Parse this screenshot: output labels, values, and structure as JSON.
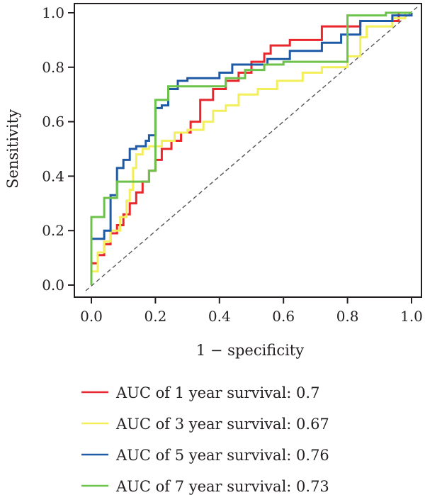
{
  "chart_data": {
    "type": "line",
    "title": "",
    "xlabel": "1 − specificity",
    "ylabel": "Sensitivity",
    "xlim": [
      0,
      1
    ],
    "ylim": [
      0,
      1
    ],
    "xticks": [
      "0.0",
      "0.2",
      "0.4",
      "0.6",
      "0.8",
      "1.0"
    ],
    "yticks": [
      "0.0",
      "0.2",
      "0.4",
      "0.6",
      "0.8",
      "1.0"
    ],
    "grid": false,
    "legend_position": "bottom",
    "reference_line": {
      "style": "dashed",
      "color": "#555555",
      "from": [
        0,
        0
      ],
      "to": [
        1,
        1
      ]
    },
    "series": [
      {
        "name": "AUC of 1 year survival: 0.7",
        "color": "#e8262b",
        "points": [
          [
            0,
            0
          ],
          [
            0,
            0.08
          ],
          [
            0.02,
            0.08
          ],
          [
            0.02,
            0.11
          ],
          [
            0.04,
            0.11
          ],
          [
            0.04,
            0.15
          ],
          [
            0.06,
            0.15
          ],
          [
            0.06,
            0.19
          ],
          [
            0.08,
            0.19
          ],
          [
            0.08,
            0.22
          ],
          [
            0.1,
            0.22
          ],
          [
            0.1,
            0.26
          ],
          [
            0.12,
            0.26
          ],
          [
            0.12,
            0.3
          ],
          [
            0.14,
            0.3
          ],
          [
            0.14,
            0.34
          ],
          [
            0.16,
            0.34
          ],
          [
            0.16,
            0.38
          ],
          [
            0.18,
            0.38
          ],
          [
            0.18,
            0.42
          ],
          [
            0.2,
            0.42
          ],
          [
            0.2,
            0.46
          ],
          [
            0.22,
            0.46
          ],
          [
            0.22,
            0.5
          ],
          [
            0.25,
            0.5
          ],
          [
            0.25,
            0.53
          ],
          [
            0.28,
            0.53
          ],
          [
            0.28,
            0.56
          ],
          [
            0.31,
            0.56
          ],
          [
            0.31,
            0.6
          ],
          [
            0.34,
            0.6
          ],
          [
            0.34,
            0.68
          ],
          [
            0.38,
            0.68
          ],
          [
            0.38,
            0.72
          ],
          [
            0.42,
            0.72
          ],
          [
            0.42,
            0.75
          ],
          [
            0.46,
            0.75
          ],
          [
            0.46,
            0.78
          ],
          [
            0.5,
            0.78
          ],
          [
            0.5,
            0.82
          ],
          [
            0.54,
            0.82
          ],
          [
            0.54,
            0.85
          ],
          [
            0.56,
            0.85
          ],
          [
            0.56,
            0.88
          ],
          [
            0.62,
            0.88
          ],
          [
            0.62,
            0.9
          ],
          [
            0.72,
            0.9
          ],
          [
            0.72,
            0.95
          ],
          [
            0.84,
            0.95
          ],
          [
            0.84,
            0.97
          ],
          [
            0.96,
            0.97
          ],
          [
            0.96,
            1.0
          ],
          [
            1.0,
            1.0
          ]
        ]
      },
      {
        "name": "AUC of 3 year survival: 0.67",
        "color": "#f2ef5a",
        "points": [
          [
            0,
            0
          ],
          [
            0,
            0.05
          ],
          [
            0.02,
            0.05
          ],
          [
            0.02,
            0.12
          ],
          [
            0.04,
            0.12
          ],
          [
            0.04,
            0.16
          ],
          [
            0.06,
            0.16
          ],
          [
            0.06,
            0.2
          ],
          [
            0.09,
            0.2
          ],
          [
            0.09,
            0.25
          ],
          [
            0.11,
            0.25
          ],
          [
            0.11,
            0.31
          ],
          [
            0.12,
            0.31
          ],
          [
            0.12,
            0.35
          ],
          [
            0.13,
            0.35
          ],
          [
            0.13,
            0.43
          ],
          [
            0.14,
            0.43
          ],
          [
            0.14,
            0.48
          ],
          [
            0.16,
            0.48
          ],
          [
            0.16,
            0.5
          ],
          [
            0.18,
            0.5
          ],
          [
            0.18,
            0.51
          ],
          [
            0.22,
            0.51
          ],
          [
            0.22,
            0.53
          ],
          [
            0.26,
            0.53
          ],
          [
            0.26,
            0.56
          ],
          [
            0.3,
            0.56
          ],
          [
            0.3,
            0.57
          ],
          [
            0.35,
            0.57
          ],
          [
            0.35,
            0.6
          ],
          [
            0.38,
            0.6
          ],
          [
            0.38,
            0.64
          ],
          [
            0.42,
            0.64
          ],
          [
            0.42,
            0.66
          ],
          [
            0.46,
            0.66
          ],
          [
            0.46,
            0.7
          ],
          [
            0.52,
            0.7
          ],
          [
            0.52,
            0.72
          ],
          [
            0.58,
            0.72
          ],
          [
            0.58,
            0.75
          ],
          [
            0.66,
            0.75
          ],
          [
            0.66,
            0.78
          ],
          [
            0.72,
            0.78
          ],
          [
            0.72,
            0.8
          ],
          [
            0.8,
            0.8
          ],
          [
            0.8,
            0.84
          ],
          [
            0.84,
            0.84
          ],
          [
            0.84,
            0.91
          ],
          [
            0.86,
            0.91
          ],
          [
            0.86,
            0.95
          ],
          [
            0.94,
            0.95
          ],
          [
            0.94,
            0.98
          ],
          [
            0.98,
            0.98
          ],
          [
            0.98,
            1.0
          ],
          [
            1.0,
            1.0
          ]
        ]
      },
      {
        "name": "AUC of 5 year survival: 0.76",
        "color": "#1f5aa6",
        "points": [
          [
            0,
            0
          ],
          [
            0,
            0.17
          ],
          [
            0.04,
            0.17
          ],
          [
            0.04,
            0.2
          ],
          [
            0.06,
            0.2
          ],
          [
            0.06,
            0.33
          ],
          [
            0.08,
            0.33
          ],
          [
            0.08,
            0.43
          ],
          [
            0.1,
            0.43
          ],
          [
            0.1,
            0.46
          ],
          [
            0.12,
            0.46
          ],
          [
            0.12,
            0.5
          ],
          [
            0.14,
            0.5
          ],
          [
            0.14,
            0.51
          ],
          [
            0.17,
            0.51
          ],
          [
            0.17,
            0.53
          ],
          [
            0.18,
            0.53
          ],
          [
            0.18,
            0.55
          ],
          [
            0.2,
            0.55
          ],
          [
            0.2,
            0.65
          ],
          [
            0.22,
            0.65
          ],
          [
            0.22,
            0.66
          ],
          [
            0.24,
            0.66
          ],
          [
            0.24,
            0.72
          ],
          [
            0.27,
            0.72
          ],
          [
            0.27,
            0.75
          ],
          [
            0.3,
            0.75
          ],
          [
            0.3,
            0.76
          ],
          [
            0.4,
            0.76
          ],
          [
            0.4,
            0.78
          ],
          [
            0.44,
            0.78
          ],
          [
            0.44,
            0.81
          ],
          [
            0.55,
            0.81
          ],
          [
            0.55,
            0.83
          ],
          [
            0.62,
            0.83
          ],
          [
            0.62,
            0.86
          ],
          [
            0.72,
            0.86
          ],
          [
            0.72,
            0.89
          ],
          [
            0.78,
            0.89
          ],
          [
            0.78,
            0.92
          ],
          [
            0.84,
            0.92
          ],
          [
            0.84,
            0.97
          ],
          [
            0.94,
            0.97
          ],
          [
            0.94,
            0.99
          ],
          [
            1.0,
            0.99
          ],
          [
            1.0,
            1.0
          ]
        ]
      },
      {
        "name": "AUC of 7 year survival: 0.73",
        "color": "#6cc24a",
        "points": [
          [
            0,
            0
          ],
          [
            0,
            0.25
          ],
          [
            0.04,
            0.25
          ],
          [
            0.04,
            0.32
          ],
          [
            0.08,
            0.32
          ],
          [
            0.08,
            0.38
          ],
          [
            0.18,
            0.38
          ],
          [
            0.18,
            0.42
          ],
          [
            0.2,
            0.42
          ],
          [
            0.2,
            0.68
          ],
          [
            0.24,
            0.68
          ],
          [
            0.24,
            0.73
          ],
          [
            0.42,
            0.73
          ],
          [
            0.42,
            0.76
          ],
          [
            0.48,
            0.76
          ],
          [
            0.48,
            0.79
          ],
          [
            0.54,
            0.79
          ],
          [
            0.54,
            0.81
          ],
          [
            0.6,
            0.81
          ],
          [
            0.6,
            0.82
          ],
          [
            0.8,
            0.82
          ],
          [
            0.8,
            0.99
          ],
          [
            0.92,
            0.99
          ],
          [
            0.92,
            1.0
          ],
          [
            1.0,
            1.0
          ]
        ]
      }
    ]
  }
}
